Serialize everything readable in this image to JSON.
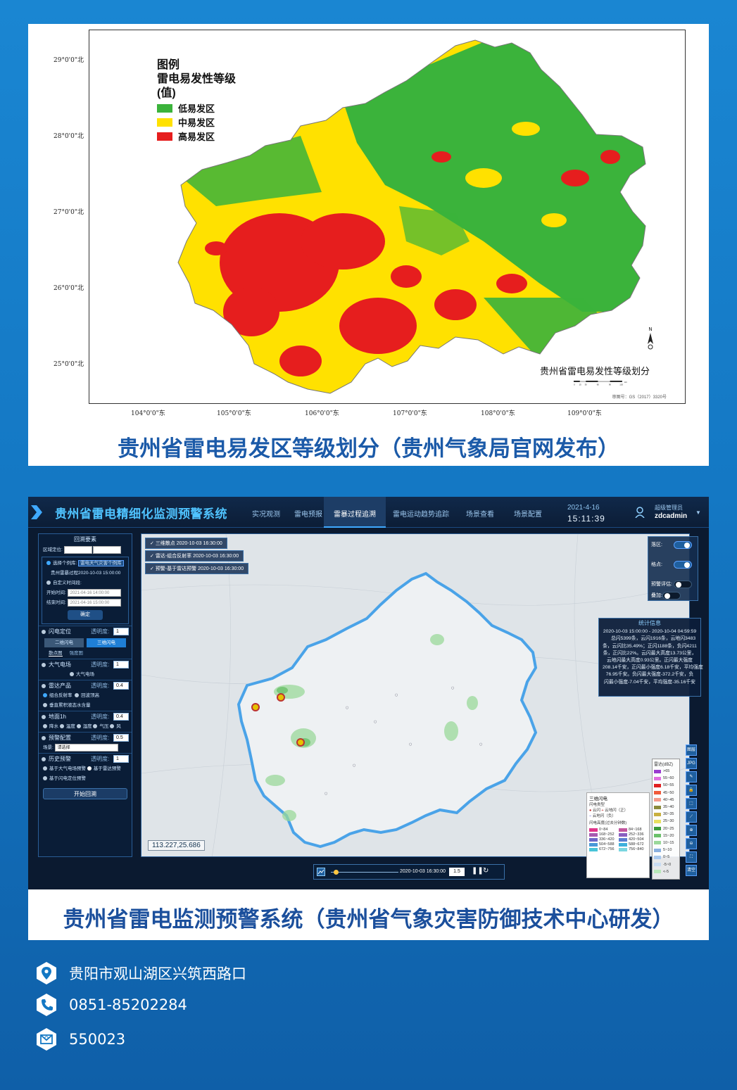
{
  "map1": {
    "y_labels": [
      "29°0'0\"北",
      "28°0'0\"北",
      "27°0'0\"北",
      "26°0'0\"北",
      "25°0'0\"北"
    ],
    "x_labels": [
      "104°0'0\"东",
      "105°0'0\"东",
      "106°0'0\"东",
      "107°0'0\"东",
      "108°0'0\"东",
      "109°0'0\"东"
    ],
    "legend": {
      "title": "图例",
      "subtitle": "雷电易发性等级",
      "unit": "(值)",
      "items": [
        {
          "label": "低易发区",
          "color": "#3bb33b"
        },
        {
          "label": "中易发区",
          "color": "#ffe100"
        },
        {
          "label": "高易发区",
          "color": "#e61e1e"
        }
      ]
    },
    "map_title": "贵州省雷电易发性等级划分",
    "scale_labels": [
      "0",
      "15",
      "30",
      "60",
      "90",
      "120"
    ],
    "scale_unit": "km",
    "approval": "审图号：GS（2017）3320号"
  },
  "caption1": "贵州省雷电易发区等级划分（贵州气象局官网发布）",
  "app": {
    "title": "贵州省雷电精细化监测预警系统",
    "nav": [
      "实况观测",
      "雷电预报",
      "雷暴过程追溯",
      "雷电运动趋势追踪",
      "场景查看",
      "场景配置"
    ],
    "active_nav": "雷暴过程追溯",
    "date": "2021-4-16",
    "time": "15:11:39",
    "user_role": "超级管理员",
    "user_name": "zdcadmin",
    "sidebar": {
      "header": "回溯要素",
      "region_label": "区域定位:",
      "event_choice": "选择个例库:",
      "event_button": "雷电天气灾害个例库",
      "event_text": "贵州雷暴过程2020-10-03 15:00:00",
      "custom_period": "自定义时间段:",
      "start_label": "开始时间:",
      "start_value": "2021-04-16 14:00:00",
      "end_label": "结束时间:",
      "end_value": "2021-04-16 15:00:00",
      "confirm": "确定",
      "sections": [
        {
          "name": "闪电定位",
          "transparency": "1"
        },
        {
          "name": "大气电场",
          "transparency": "1"
        },
        {
          "name": "雷达产品",
          "transparency": "0.4"
        },
        {
          "name": "地面1h",
          "transparency": "0.4"
        },
        {
          "name": "预警配置",
          "transparency": "0.5"
        },
        {
          "name": "历史预警",
          "transparency": "1"
        }
      ],
      "transparency_label": "透明度:",
      "lightning_tabs": [
        "二维闪电",
        "三维闪电"
      ],
      "lightning_sub": [
        "散点图",
        "强度图"
      ],
      "efield_item": "大气电场",
      "radar_items": [
        "组合反射率",
        "回波顶高",
        "垂直累积液态水含量"
      ],
      "ground_items": [
        "降水",
        "温度",
        "湿度",
        "气压",
        "风"
      ],
      "scene_label": "场景:",
      "scene_value": "请选择",
      "history_items": [
        "基于大气电场预警",
        "基于雷达预警",
        "基于闪电定位预警"
      ],
      "start_button": "开始回溯"
    },
    "layers": [
      "三维散点 2020-10-03 16:30:00",
      "雷达-组合反射率 2020-10-03 16:30:00",
      "预警-基于雷达预警 2020-10-03 16:30:00"
    ],
    "right_controls": [
      {
        "label": "落区:",
        "on": true
      },
      {
        "label": "格点:",
        "on": true
      },
      {
        "label": "预警评估:",
        "on": false
      },
      {
        "label": "叠加:",
        "on": false
      }
    ],
    "stats": {
      "title": "统计信息",
      "range": "2020-10-03 15:00:00 - 2020-10-04 04:59:59",
      "lines": [
        "总闪5399条，云闪1916条，云地闪3483",
        "条，云闪比35.49%；正闪1188条，负闪4211",
        "条，正闪比22%。云闪最大高度13.73公里，",
        "云地闪最大高度0.93公里。正闪最大强度",
        "208.14千安，正闪最小强度6.18千安，平均强度",
        "76.95千安。负闪最大强度-372.2千安，负",
        "闪最小强度-7.04千安，平均强度-35.16千安"
      ]
    },
    "legend2": {
      "title": "三维闪电",
      "type_label": "闪电类型",
      "types": [
        "云闪",
        "云地闪（正）",
        "云地闪（负）"
      ],
      "height_label": "闪电高度(过去分钟数)",
      "bins": [
        {
          "label": "0~84",
          "color": "#e0338a"
        },
        {
          "label": "84~168",
          "color": "#c2569e"
        },
        {
          "label": "168~252",
          "color": "#a85ab0"
        },
        {
          "label": "252~336",
          "color": "#8a5fc0"
        },
        {
          "label": "336~420",
          "color": "#6e66c8"
        },
        {
          "label": "420~504",
          "color": "#5b7dd0"
        },
        {
          "label": "504~588",
          "color": "#4a98d8"
        },
        {
          "label": "588~672",
          "color": "#3fb0dc"
        },
        {
          "label": "672~756",
          "color": "#48c4d8"
        },
        {
          "label": "756~840",
          "color": "#7ad6e0"
        }
      ]
    },
    "radar_legend": {
      "title": "雷达(dBZ)",
      "items": [
        {
          "label": ">65",
          "color": "#9a3bd0"
        },
        {
          "label": "55~60",
          "color": "#e070e0"
        },
        {
          "label": "50~55",
          "color": "#e02020"
        },
        {
          "label": "45~50",
          "color": "#f05a3a"
        },
        {
          "label": "40~45",
          "color": "#f49a8a"
        },
        {
          "label": "35~40",
          "color": "#8a8a3a"
        },
        {
          "label": "30~35",
          "color": "#c8b040"
        },
        {
          "label": "25~30",
          "color": "#e8e060"
        },
        {
          "label": "20~25",
          "color": "#3a9a3a"
        },
        {
          "label": "15~20",
          "color": "#6ac06a"
        },
        {
          "label": "10~15",
          "color": "#9ad89a"
        },
        {
          "label": "5~10",
          "color": "#8ab0e0"
        },
        {
          "label": "0~5",
          "color": "#a8c8ee"
        },
        {
          "label": "-5~0",
          "color": "#c8dcf4"
        },
        {
          "label": "<-5",
          "color": "#b8e8b8"
        }
      ]
    },
    "tools": [
      "图层",
      "JPG",
      "✎",
      "🔒",
      "⬚",
      "⟋",
      "⊕",
      "⊖",
      "⛶",
      "清空"
    ],
    "coord": "113.227,25.686",
    "timeline_time": "2020-10-03 16:30:00",
    "timeline_speed": "1.5"
  },
  "caption2": "贵州省雷电监测预警系统（贵州省气象灾害防御技术中心研发）",
  "contacts": [
    {
      "icon": "location-icon",
      "text": "贵阳市观山湖区兴筑西路口"
    },
    {
      "icon": "phone-icon",
      "text": "0851-85202284"
    },
    {
      "icon": "mail-icon",
      "text": "550023"
    }
  ]
}
